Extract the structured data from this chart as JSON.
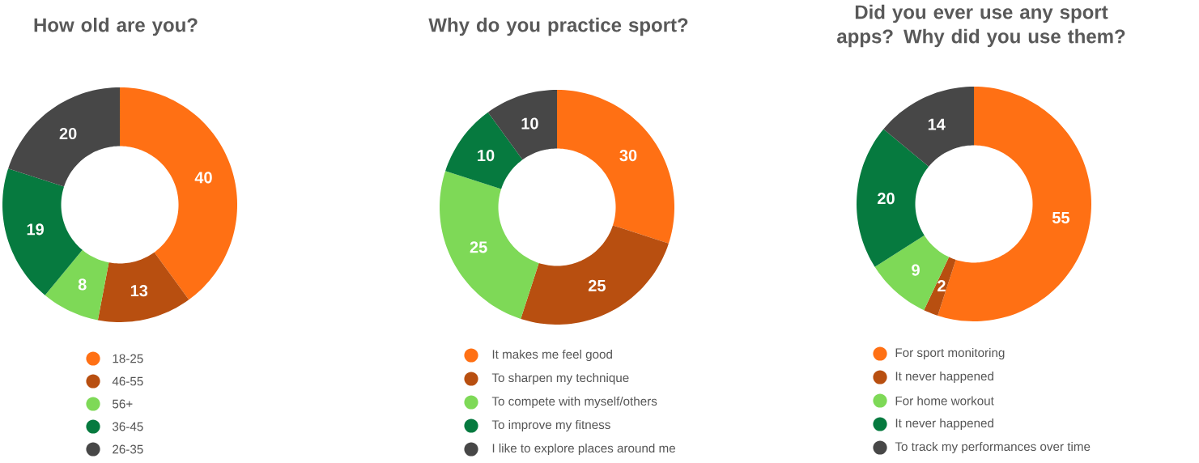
{
  "chart_data": [
    {
      "type": "donut",
      "title": "How old are you?",
      "categories": [
        "18-25",
        "46-55",
        "56+",
        "36-45",
        "26-35"
      ],
      "values": [
        40,
        13,
        8,
        19,
        20
      ],
      "colors": [
        "#ff7014",
        "#b84f10",
        "#7ed957",
        "#067a3f",
        "#474747"
      ],
      "data_labels": true,
      "legend": "bottom"
    },
    {
      "type": "donut",
      "title": "Why do you practice sport?",
      "categories": [
        "It makes me feel good",
        "To sharpen my technique",
        "To compete with myself/others",
        "To improve my fitness",
        "I like to explore places around me"
      ],
      "values": [
        30,
        25,
        25,
        10,
        10
      ],
      "colors": [
        "#ff7014",
        "#b84f10",
        "#7ed957",
        "#067a3f",
        "#474747"
      ],
      "data_labels": true,
      "legend": "bottom"
    },
    {
      "type": "donut",
      "title": "Did you ever use any sport apps? Why did you use them?",
      "categories": [
        "For sport monitoring",
        "It never happened",
        "For home workout",
        "It never happened",
        "To track my performances over time"
      ],
      "values": [
        55,
        2,
        9,
        20,
        14
      ],
      "colors": [
        "#ff7014",
        "#b84f10",
        "#7ed957",
        "#067a3f",
        "#474747"
      ],
      "data_labels": true,
      "legend": "bottom"
    }
  ]
}
